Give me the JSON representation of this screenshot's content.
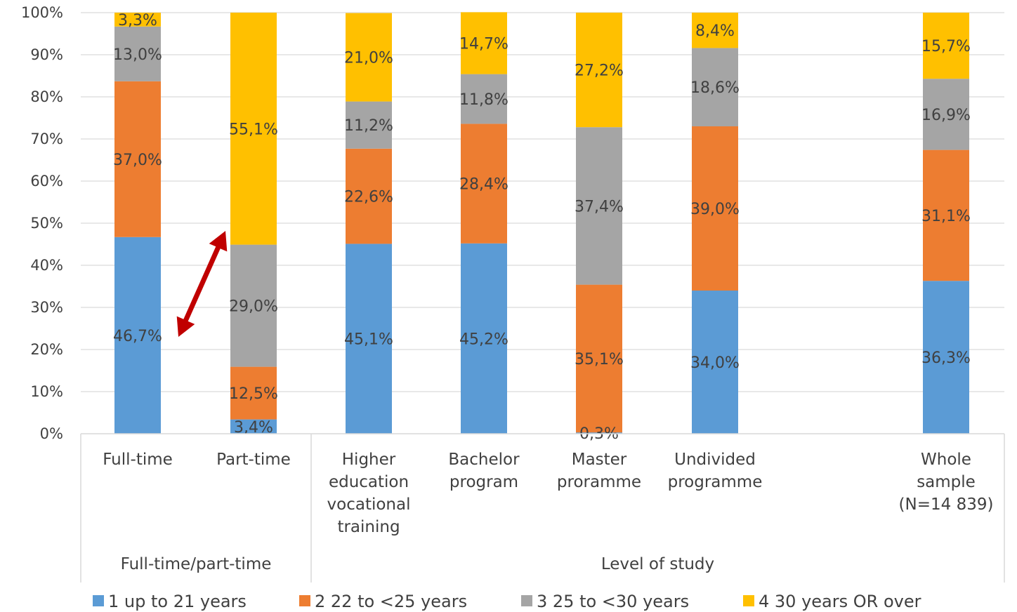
{
  "chart_data": {
    "type": "bar",
    "stacked": true,
    "percent": true,
    "ylim": [
      0,
      100
    ],
    "yticks": [
      "0%",
      "10%",
      "20%",
      "30%",
      "40%",
      "50%",
      "60%",
      "70%",
      "80%",
      "90%",
      "100%"
    ],
    "grid": true,
    "legend_position": "bottom",
    "categories": [
      [
        "Full-time"
      ],
      [
        "Part-time"
      ],
      [
        "Higher",
        "education",
        "vocational",
        "training"
      ],
      [
        "Bachelor",
        "program"
      ],
      [
        "Master",
        "proramme"
      ],
      [
        "Undivided",
        "programme"
      ],
      [
        "Whole",
        "sample",
        "(N=14 839)"
      ]
    ],
    "groups": [
      {
        "label": "Full-time/part-time",
        "categories": [
          0,
          1
        ]
      },
      {
        "label": "Level of study",
        "categories": [
          2,
          3,
          4,
          5,
          6
        ]
      }
    ],
    "series": [
      {
        "name": "1 up to 21 years",
        "color": "#5B9BD5",
        "values": [
          46.7,
          3.4,
          45.1,
          45.2,
          0.3,
          34.0,
          36.3
        ],
        "labels": [
          "46,7%",
          "3,4%",
          "45,1%",
          "45,2%",
          "0,3%",
          "34,0%",
          "36,3%"
        ]
      },
      {
        "name": "2 22 to <25 years",
        "color": "#ED7D31",
        "values": [
          37.0,
          12.5,
          22.6,
          28.4,
          35.1,
          39.0,
          31.1
        ],
        "labels": [
          "37,0%",
          "12,5%",
          "22,6%",
          "28,4%",
          "35,1%",
          "39,0%",
          "31,1%"
        ]
      },
      {
        "name": "3 25 to <30 years",
        "color": "#A5A5A5",
        "values": [
          13.0,
          29.0,
          11.2,
          11.8,
          37.4,
          18.6,
          16.9
        ],
        "labels": [
          "13,0%",
          "29,0%",
          "11,2%",
          "11,8%",
          "37,4%",
          "18,6%",
          "16,9%"
        ]
      },
      {
        "name": "4 30 years OR over",
        "color": "#FFC000",
        "values": [
          3.3,
          55.1,
          21.0,
          14.7,
          27.2,
          8.4,
          15.7
        ],
        "labels": [
          "3,3%",
          "55,1%",
          "21,0%",
          "14,7%",
          "27,2%",
          "8,4%",
          "15,7%"
        ]
      }
    ],
    "annotation": {
      "type": "double-arrow",
      "color": "#C00000",
      "from": {
        "category": 0,
        "value": 25
      },
      "to": {
        "category": 1,
        "value": 49
      }
    }
  }
}
